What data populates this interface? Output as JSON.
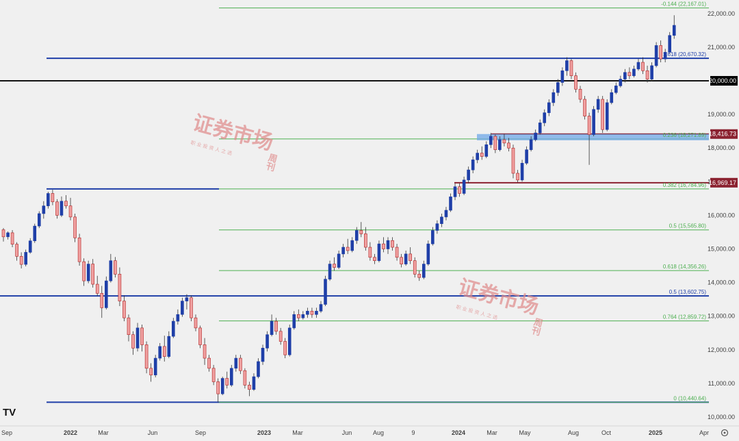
{
  "chart_data": {
    "type": "candlestick",
    "title": "",
    "xlabel": "",
    "ylabel": "",
    "ylim": [
      9900,
      22400
    ],
    "y_ticks": [
      {
        "value": 22000,
        "label": "22,000.00"
      },
      {
        "value": 21000,
        "label": "21,000.00"
      },
      {
        "value": 19000,
        "label": "19,000.00"
      },
      {
        "value": 18000,
        "label": "18,000.00"
      },
      {
        "value": 17000,
        "label": "17,000.00"
      },
      {
        "value": 16000,
        "label": "16,000.00"
      },
      {
        "value": 15000,
        "label": "15,000.00"
      },
      {
        "value": 14000,
        "label": "14,000.00"
      },
      {
        "value": 13000,
        "label": "13,000.00"
      },
      {
        "value": 12000,
        "label": "12,000.00"
      },
      {
        "value": 11000,
        "label": "11,000.00"
      },
      {
        "value": 10000,
        "label": "10,000.00"
      }
    ],
    "x_ticks": [
      "Sep",
      "2022",
      "Mar",
      "Jun",
      "Sep",
      "2023",
      "Mar",
      "Jun",
      "Aug",
      "9",
      "2024",
      "Mar",
      "May",
      "Aug",
      "Oct",
      "2025",
      "Apr"
    ],
    "price_tags": [
      {
        "value": 20000,
        "label": "20,000.00",
        "bg": "#000000"
      },
      {
        "value": 18416.73,
        "label": "18,416.73",
        "bg": "#8b2230"
      },
      {
        "value": 16969.17,
        "label": "16,969.17",
        "bg": "#8b2230"
      }
    ],
    "levels": [
      {
        "value": 22167.01,
        "label": "-0.144 (22,167.01)",
        "color": "#4caf50",
        "style": "fib"
      },
      {
        "value": 20670.32,
        "label": "1.618 (20,670.32)",
        "color": "#1f3fa8",
        "style": "fib-ext"
      },
      {
        "value": 18271.89,
        "label": "0.236 (18,271.89)",
        "color": "#4caf50",
        "style": "fib"
      },
      {
        "value": 16784.96,
        "label": "0.382 (16,784.96)",
        "color": "#4caf50",
        "style": "fib"
      },
      {
        "value": 15565.8,
        "label": "0.5 (15,565.80)",
        "color": "#4caf50",
        "style": "fib"
      },
      {
        "value": 14356.26,
        "label": "0.618 (14,356.26)",
        "color": "#4caf50",
        "style": "fib"
      },
      {
        "value": 13602.75,
        "label": "0.5 (13,602.75)",
        "color": "#1f3fa8",
        "style": "fib-ext"
      },
      {
        "value": 12859.72,
        "label": "0.764 (12,859.72)",
        "color": "#4caf50",
        "style": "fib"
      },
      {
        "value": 10440.64,
        "label": "0 (10,440.64)",
        "color": "#4caf50",
        "style": "fib"
      }
    ],
    "colors": {
      "up": "#1f3fa8",
      "down": "#f0a0a0",
      "down_border": "#b22222",
      "wick": "#333333",
      "fib_green": "#4caf50",
      "fib_blue": "#1f3fa8",
      "support_red": "#8b2230",
      "zone": "#6fa8e8",
      "grid_background": "#f0f0f0"
    },
    "ohlc": [
      [
        15570,
        15620,
        15220,
        15360
      ],
      [
        15360,
        15520,
        15280,
        15480
      ],
      [
        15480,
        15560,
        15050,
        15140
      ],
      [
        15140,
        15200,
        14650,
        14780
      ],
      [
        14780,
        14900,
        14420,
        14540
      ],
      [
        14540,
        14980,
        14480,
        14900
      ],
      [
        14900,
        15320,
        14860,
        15240
      ],
      [
        15240,
        15750,
        15180,
        15680
      ],
      [
        15680,
        16120,
        15620,
        16050
      ],
      [
        16050,
        16420,
        15900,
        16280
      ],
      [
        16280,
        16700,
        16200,
        16650
      ],
      [
        16650,
        16760,
        16300,
        16400
      ],
      [
        16400,
        16480,
        15900,
        16000
      ],
      [
        16000,
        16560,
        15950,
        16420
      ],
      [
        16420,
        16600,
        16200,
        16280
      ],
      [
        16280,
        16520,
        15850,
        15950
      ],
      [
        15950,
        16050,
        15200,
        15330
      ],
      [
        15330,
        15450,
        14500,
        14620
      ],
      [
        14620,
        14720,
        13900,
        14050
      ],
      [
        14050,
        14650,
        13980,
        14550
      ],
      [
        14550,
        14700,
        13850,
        13950
      ],
      [
        13950,
        14200,
        13600,
        13680
      ],
      [
        13680,
        13900,
        12950,
        13250
      ],
      [
        13250,
        14180,
        13200,
        14050
      ],
      [
        14050,
        14850,
        14000,
        14650
      ],
      [
        14650,
        14760,
        14150,
        14250
      ],
      [
        14250,
        14450,
        13300,
        13450
      ],
      [
        13450,
        13620,
        12850,
        12950
      ],
      [
        12950,
        13050,
        12250,
        12450
      ],
      [
        12450,
        12550,
        11850,
        12050
      ],
      [
        12050,
        12800,
        11950,
        12650
      ],
      [
        12650,
        12750,
        11950,
        12150
      ],
      [
        12150,
        12250,
        11300,
        11450
      ],
      [
        11450,
        11600,
        11050,
        11250
      ],
      [
        11250,
        11850,
        11180,
        11750
      ],
      [
        11750,
        12200,
        11680,
        12100
      ],
      [
        12100,
        12420,
        11650,
        11800
      ],
      [
        11800,
        12550,
        11750,
        12400
      ],
      [
        12400,
        12950,
        12350,
        12850
      ],
      [
        12850,
        13200,
        12750,
        13050
      ],
      [
        13050,
        13550,
        12980,
        13450
      ],
      [
        13450,
        13650,
        13200,
        13550
      ],
      [
        13550,
        13620,
        12850,
        12950
      ],
      [
        12950,
        13050,
        12550,
        12650
      ],
      [
        12650,
        12720,
        12050,
        12150
      ],
      [
        12150,
        12350,
        11550,
        11750
      ],
      [
        11750,
        11850,
        11350,
        11450
      ],
      [
        11450,
        11550,
        10950,
        11050
      ],
      [
        11050,
        11150,
        10440,
        10690
      ],
      [
        10690,
        11200,
        10650,
        11150
      ],
      [
        11150,
        11350,
        10850,
        10950
      ],
      [
        10950,
        11550,
        10900,
        11450
      ],
      [
        11450,
        11850,
        11350,
        11750
      ],
      [
        11750,
        11850,
        11280,
        11380
      ],
      [
        11380,
        11450,
        10850,
        10950
      ],
      [
        10950,
        11050,
        10620,
        10820
      ],
      [
        10820,
        11300,
        10780,
        11200
      ],
      [
        11200,
        11750,
        11150,
        11650
      ],
      [
        11650,
        12150,
        11550,
        12050
      ],
      [
        12050,
        12550,
        11950,
        12450
      ],
      [
        12450,
        13050,
        12400,
        12850
      ],
      [
        12850,
        12950,
        12450,
        12550
      ],
      [
        12550,
        12650,
        12150,
        12250
      ],
      [
        12250,
        12350,
        11750,
        11850
      ],
      [
        11850,
        12750,
        11800,
        12650
      ],
      [
        12650,
        13150,
        12600,
        13050
      ],
      [
        13050,
        13200,
        12850,
        12950
      ],
      [
        12950,
        13150,
        12900,
        13050
      ],
      [
        13050,
        13250,
        12950,
        13150
      ],
      [
        13150,
        13250,
        12950,
        13050
      ],
      [
        13050,
        13250,
        12950,
        13150
      ],
      [
        13150,
        13450,
        13100,
        13350
      ],
      [
        13350,
        14200,
        13300,
        14100
      ],
      [
        14100,
        14650,
        14050,
        14550
      ],
      [
        14550,
        14750,
        14350,
        14450
      ],
      [
        14450,
        14950,
        14400,
        14850
      ],
      [
        14850,
        15150,
        14750,
        15050
      ],
      [
        15050,
        15300,
        14850,
        14950
      ],
      [
        14950,
        15350,
        14900,
        15250
      ],
      [
        15250,
        15650,
        15150,
        15550
      ],
      [
        15550,
        15800,
        15350,
        15450
      ],
      [
        15450,
        15650,
        14950,
        15050
      ],
      [
        15050,
        15200,
        14650,
        14750
      ],
      [
        14750,
        14850,
        14550,
        14650
      ],
      [
        14650,
        15250,
        14600,
        15150
      ],
      [
        15150,
        15350,
        14900,
        15000
      ],
      [
        15000,
        15350,
        14850,
        15250
      ],
      [
        15250,
        15350,
        14950,
        15050
      ],
      [
        15050,
        15150,
        14650,
        14750
      ],
      [
        14750,
        14850,
        14450,
        14550
      ],
      [
        14550,
        14950,
        14500,
        14850
      ],
      [
        14850,
        15050,
        14550,
        14650
      ],
      [
        14650,
        14750,
        14150,
        14250
      ],
      [
        14250,
        14350,
        14050,
        14150
      ],
      [
        14150,
        14650,
        14100,
        14550
      ],
      [
        14550,
        15250,
        14500,
        15150
      ],
      [
        15150,
        15650,
        15100,
        15550
      ],
      [
        15550,
        15850,
        15450,
        15750
      ],
      [
        15750,
        16050,
        15650,
        15950
      ],
      [
        15950,
        16250,
        15850,
        16150
      ],
      [
        16150,
        16650,
        16100,
        16550
      ],
      [
        16550,
        16950,
        16450,
        16850
      ],
      [
        16850,
        16950,
        16550,
        16650
      ],
      [
        16650,
        17150,
        16600,
        17050
      ],
      [
        17050,
        17450,
        16950,
        17350
      ],
      [
        17350,
        17750,
        17250,
        17650
      ],
      [
        17650,
        17950,
        17550,
        17850
      ],
      [
        17850,
        18050,
        17650,
        17750
      ],
      [
        17750,
        18200,
        17700,
        18100
      ],
      [
        18100,
        18450,
        18000,
        18350
      ],
      [
        18350,
        18400,
        17850,
        17950
      ],
      [
        17950,
        18350,
        17900,
        18250
      ],
      [
        18250,
        18420,
        18050,
        18150
      ],
      [
        18150,
        18300,
        17900,
        18000
      ],
      [
        18000,
        18100,
        17100,
        17250
      ],
      [
        17250,
        17350,
        16980,
        17050
      ],
      [
        17050,
        17650,
        17000,
        17550
      ],
      [
        17550,
        18050,
        17500,
        17950
      ],
      [
        17950,
        18350,
        17900,
        18250
      ],
      [
        18250,
        18550,
        18200,
        18450
      ],
      [
        18450,
        18850,
        18400,
        18750
      ],
      [
        18750,
        19150,
        18650,
        19050
      ],
      [
        19050,
        19450,
        18950,
        19350
      ],
      [
        19350,
        19750,
        19250,
        19650
      ],
      [
        19650,
        20050,
        19550,
        19950
      ],
      [
        19950,
        20400,
        19850,
        20300
      ],
      [
        20300,
        20700,
        20150,
        20600
      ],
      [
        20600,
        20650,
        20050,
        20150
      ],
      [
        20150,
        20250,
        19650,
        19750
      ],
      [
        19750,
        19850,
        19350,
        19450
      ],
      [
        19450,
        19550,
        18850,
        18950
      ],
      [
        18950,
        19050,
        17500,
        18400
      ],
      [
        18400,
        19250,
        18350,
        19150
      ],
      [
        19150,
        19550,
        19050,
        19450
      ],
      [
        19450,
        19550,
        18450,
        18550
      ],
      [
        18550,
        19450,
        18500,
        19350
      ],
      [
        19350,
        19750,
        19300,
        19650
      ],
      [
        19650,
        19950,
        19600,
        19850
      ],
      [
        19850,
        20150,
        19800,
        20050
      ],
      [
        20050,
        20350,
        19950,
        20250
      ],
      [
        20250,
        20400,
        20050,
        20150
      ],
      [
        20150,
        20450,
        20100,
        20350
      ],
      [
        20350,
        20650,
        20300,
        20550
      ],
      [
        20550,
        20700,
        20200,
        20300
      ],
      [
        20300,
        20450,
        19950,
        20050
      ],
      [
        20050,
        20550,
        19980,
        20450
      ],
      [
        20450,
        21150,
        20400,
        21050
      ],
      [
        21050,
        21200,
        20550,
        20650
      ],
      [
        20650,
        20950,
        20550,
        20850
      ],
      [
        20850,
        21450,
        20800,
        21350
      ],
      [
        21350,
        21950,
        21250,
        21650
      ]
    ]
  },
  "branding": {
    "logo": "TV"
  },
  "watermarks": [
    {
      "main": "证券市场",
      "side": "周刊",
      "sub": "职 业 投 资 人 之 选"
    },
    {
      "main": "证券市场",
      "side": "周刊",
      "sub": "职 业 投 资 人 之 选"
    }
  ]
}
